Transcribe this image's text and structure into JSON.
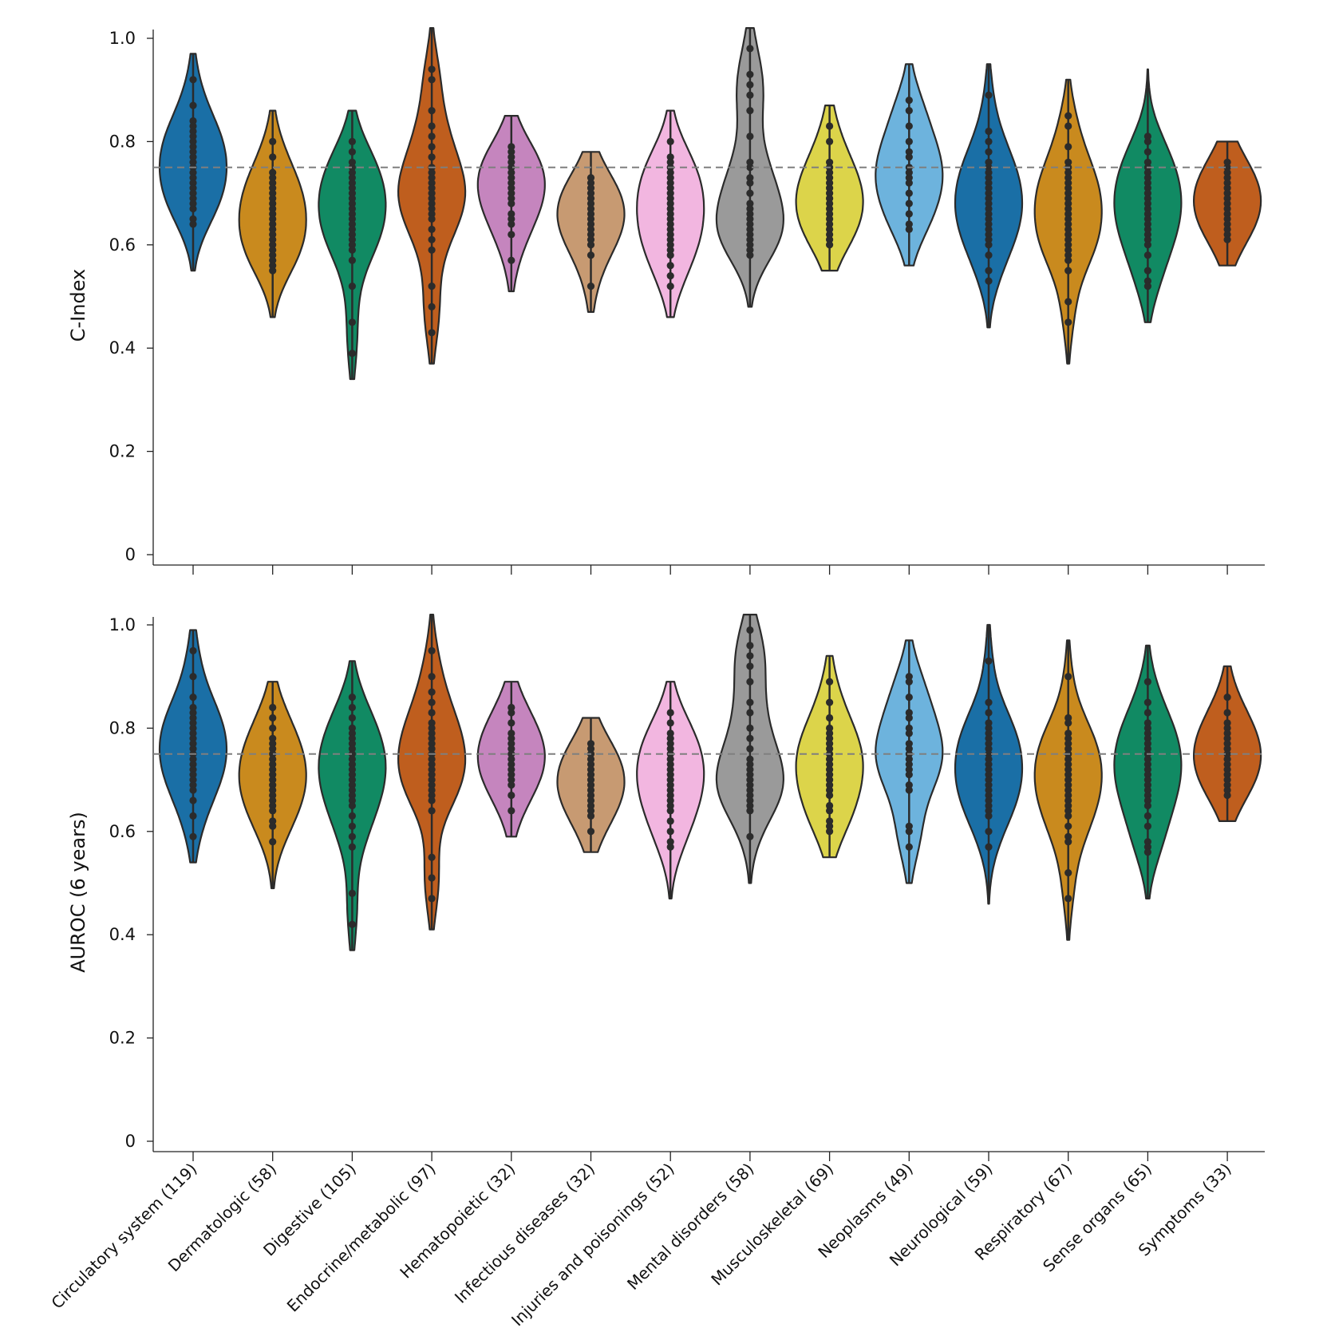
{
  "chart_data": [
    {
      "type": "violin",
      "ylabel": "C-Index",
      "ylim": [
        0,
        1.0
      ],
      "yticks": [
        0,
        0.2,
        0.4,
        0.6,
        0.8,
        1.0
      ],
      "ytick_labels": [
        "0",
        "0.2",
        "0.4",
        "0.6",
        "0.8",
        "1.0"
      ],
      "reference_line": 0.75,
      "categories": [
        "Circulatory system (119)",
        "Dermatologic (58)",
        "Digestive (105)",
        "Endocrine/metabolic (97)",
        "Hematopoietic (32)",
        "Infectious diseases (32)",
        "Injuries and poisonings (52)",
        "Mental disorders (58)",
        "Musculoskeletal (69)",
        "Neoplasms (49)",
        "Neurological (59)",
        "Respiratory (67)",
        "Sense organs (65)",
        "Symptoms (33)"
      ],
      "colors": [
        "#1a6fa6",
        "#c98a1e",
        "#118a63",
        "#bf5e1e",
        "#c585be",
        "#c79a72",
        "#f2b6e0",
        "#9a9a9a",
        "#dcd44a",
        "#6db3dd",
        "#1a6fa6",
        "#c98a1e",
        "#118a63",
        "#bf5e1e"
      ],
      "violins": [
        {
          "min": 0.55,
          "max": 0.97,
          "mode": 0.775
        },
        {
          "min": 0.46,
          "max": 0.86,
          "mode": 0.68
        },
        {
          "min": 0.34,
          "max": 0.86,
          "mode": 0.7
        },
        {
          "min": 0.37,
          "max": 1.02,
          "mode": 0.72
        },
        {
          "min": 0.51,
          "max": 0.85,
          "mode": 0.74
        },
        {
          "min": 0.47,
          "max": 0.78,
          "mode": 0.67
        },
        {
          "min": 0.46,
          "max": 0.86,
          "mode": 0.67
        },
        {
          "min": 0.48,
          "max": 1.02,
          "mode": 0.66
        },
        {
          "min": 0.55,
          "max": 0.87,
          "mode": 0.69
        },
        {
          "min": 0.56,
          "max": 0.95,
          "mode": 0.74
        },
        {
          "min": 0.44,
          "max": 0.95,
          "mode": 0.67
        },
        {
          "min": 0.37,
          "max": 0.92,
          "mode": 0.65
        },
        {
          "min": 0.45,
          "max": 0.94,
          "mode": 0.68
        },
        {
          "min": 0.56,
          "max": 0.8,
          "mode": 0.69
        }
      ],
      "points": [
        [
          0.92,
          0.87,
          0.84,
          0.83,
          0.82,
          0.81,
          0.8,
          0.79,
          0.78,
          0.77,
          0.76,
          0.75,
          0.74,
          0.73,
          0.72,
          0.71,
          0.7,
          0.69,
          0.68,
          0.67,
          0.65,
          0.64
        ],
        [
          0.8,
          0.77,
          0.74,
          0.73,
          0.72,
          0.71,
          0.7,
          0.69,
          0.68,
          0.67,
          0.66,
          0.65,
          0.64,
          0.63,
          0.62,
          0.61,
          0.6,
          0.59,
          0.58,
          0.57,
          0.56,
          0.55
        ],
        [
          0.8,
          0.78,
          0.76,
          0.75,
          0.74,
          0.73,
          0.72,
          0.71,
          0.7,
          0.69,
          0.68,
          0.67,
          0.66,
          0.65,
          0.64,
          0.63,
          0.62,
          0.61,
          0.6,
          0.59,
          0.57,
          0.52,
          0.45,
          0.39
        ],
        [
          0.94,
          0.92,
          0.86,
          0.83,
          0.81,
          0.79,
          0.77,
          0.75,
          0.74,
          0.73,
          0.72,
          0.71,
          0.7,
          0.69,
          0.68,
          0.67,
          0.66,
          0.65,
          0.63,
          0.61,
          0.59,
          0.52,
          0.48,
          0.43
        ],
        [
          0.79,
          0.78,
          0.77,
          0.76,
          0.75,
          0.74,
          0.73,
          0.72,
          0.71,
          0.7,
          0.69,
          0.68,
          0.66,
          0.65,
          0.64,
          0.62,
          0.57
        ],
        [
          0.73,
          0.72,
          0.71,
          0.7,
          0.69,
          0.68,
          0.67,
          0.66,
          0.65,
          0.64,
          0.63,
          0.62,
          0.61,
          0.6,
          0.58,
          0.52
        ],
        [
          0.8,
          0.77,
          0.76,
          0.75,
          0.74,
          0.73,
          0.72,
          0.71,
          0.7,
          0.69,
          0.68,
          0.67,
          0.66,
          0.65,
          0.64,
          0.63,
          0.62,
          0.61,
          0.6,
          0.59,
          0.58,
          0.56,
          0.54,
          0.52
        ],
        [
          0.98,
          0.93,
          0.91,
          0.89,
          0.86,
          0.81,
          0.76,
          0.75,
          0.73,
          0.72,
          0.7,
          0.68,
          0.67,
          0.66,
          0.65,
          0.64,
          0.63,
          0.62,
          0.61,
          0.6,
          0.59,
          0.58
        ],
        [
          0.83,
          0.8,
          0.76,
          0.75,
          0.74,
          0.73,
          0.72,
          0.71,
          0.7,
          0.69,
          0.68,
          0.67,
          0.66,
          0.65,
          0.64,
          0.63,
          0.62,
          0.61,
          0.6
        ],
        [
          0.88,
          0.86,
          0.83,
          0.8,
          0.78,
          0.77,
          0.75,
          0.74,
          0.73,
          0.72,
          0.7,
          0.68,
          0.66,
          0.64,
          0.63
        ],
        [
          0.89,
          0.82,
          0.8,
          0.78,
          0.76,
          0.75,
          0.74,
          0.73,
          0.72,
          0.71,
          0.7,
          0.69,
          0.68,
          0.67,
          0.66,
          0.65,
          0.64,
          0.63,
          0.62,
          0.61,
          0.6,
          0.58,
          0.55,
          0.53
        ],
        [
          0.85,
          0.83,
          0.79,
          0.76,
          0.75,
          0.74,
          0.73,
          0.72,
          0.71,
          0.7,
          0.69,
          0.68,
          0.67,
          0.66,
          0.65,
          0.64,
          0.63,
          0.62,
          0.61,
          0.6,
          0.59,
          0.58,
          0.57,
          0.55,
          0.49,
          0.45
        ],
        [
          0.81,
          0.8,
          0.78,
          0.76,
          0.75,
          0.74,
          0.73,
          0.72,
          0.71,
          0.7,
          0.69,
          0.68,
          0.67,
          0.66,
          0.65,
          0.64,
          0.63,
          0.62,
          0.61,
          0.6,
          0.58,
          0.55,
          0.53,
          0.52
        ],
        [
          0.76,
          0.75,
          0.74,
          0.73,
          0.72,
          0.71,
          0.7,
          0.69,
          0.68,
          0.67,
          0.66,
          0.65,
          0.64,
          0.63,
          0.62,
          0.61
        ]
      ]
    },
    {
      "type": "violin",
      "ylabel": "AUROC (6 years)",
      "ylim": [
        0,
        1.0
      ],
      "yticks": [
        0,
        0.2,
        0.4,
        0.6,
        0.8,
        1.0
      ],
      "ytick_labels": [
        "0",
        "0.2",
        "0.4",
        "0.6",
        "0.8",
        "1.0"
      ],
      "reference_line": 0.75,
      "categories": [
        "Circulatory system (119)",
        "Dermatologic (58)",
        "Digestive (105)",
        "Endocrine/metabolic (97)",
        "Hematopoietic (32)",
        "Infectious diseases (32)",
        "Injuries and poisonings (52)",
        "Mental disorders (58)",
        "Musculoskeletal (69)",
        "Neoplasms (49)",
        "Neurological (59)",
        "Respiratory (67)",
        "Sense organs (65)",
        "Symptoms (33)"
      ],
      "colors": [
        "#1a6fa6",
        "#c98a1e",
        "#118a63",
        "#bf5e1e",
        "#c585be",
        "#c79a72",
        "#f2b6e0",
        "#9a9a9a",
        "#dcd44a",
        "#6db3dd",
        "#1a6fa6",
        "#c98a1e",
        "#118a63",
        "#bf5e1e"
      ],
      "violins": [
        {
          "min": 0.54,
          "max": 0.99,
          "mode": 0.8
        },
        {
          "min": 0.49,
          "max": 0.89,
          "mode": 0.74
        },
        {
          "min": 0.37,
          "max": 0.93,
          "mode": 0.76
        },
        {
          "min": 0.41,
          "max": 1.02,
          "mode": 0.75
        },
        {
          "min": 0.59,
          "max": 0.89,
          "mode": 0.76
        },
        {
          "min": 0.56,
          "max": 0.82,
          "mode": 0.7
        },
        {
          "min": 0.47,
          "max": 0.89,
          "mode": 0.71
        },
        {
          "min": 0.5,
          "max": 1.02,
          "mode": 0.7
        },
        {
          "min": 0.55,
          "max": 0.94,
          "mode": 0.72
        },
        {
          "min": 0.5,
          "max": 0.97,
          "mode": 0.76
        },
        {
          "min": 0.46,
          "max": 1.0,
          "mode": 0.74
        },
        {
          "min": 0.39,
          "max": 0.97,
          "mode": 0.73
        },
        {
          "min": 0.47,
          "max": 0.96,
          "mode": 0.74
        },
        {
          "min": 0.62,
          "max": 0.92,
          "mode": 0.76
        }
      ],
      "points": [
        [
          0.95,
          0.9,
          0.86,
          0.84,
          0.83,
          0.82,
          0.81,
          0.8,
          0.79,
          0.78,
          0.77,
          0.76,
          0.75,
          0.74,
          0.73,
          0.72,
          0.71,
          0.7,
          0.69,
          0.68,
          0.66,
          0.63,
          0.59
        ],
        [
          0.84,
          0.82,
          0.8,
          0.78,
          0.77,
          0.76,
          0.75,
          0.74,
          0.73,
          0.72,
          0.71,
          0.7,
          0.69,
          0.68,
          0.67,
          0.66,
          0.65,
          0.64,
          0.62,
          0.61,
          0.58
        ],
        [
          0.86,
          0.84,
          0.82,
          0.8,
          0.79,
          0.78,
          0.77,
          0.76,
          0.75,
          0.74,
          0.73,
          0.72,
          0.71,
          0.7,
          0.69,
          0.68,
          0.67,
          0.66,
          0.65,
          0.63,
          0.61,
          0.59,
          0.57,
          0.48,
          0.42
        ],
        [
          0.95,
          0.9,
          0.87,
          0.85,
          0.83,
          0.81,
          0.8,
          0.79,
          0.78,
          0.77,
          0.76,
          0.75,
          0.74,
          0.73,
          0.72,
          0.71,
          0.7,
          0.69,
          0.68,
          0.67,
          0.66,
          0.64,
          0.55,
          0.51,
          0.47
        ],
        [
          0.84,
          0.83,
          0.81,
          0.79,
          0.78,
          0.77,
          0.76,
          0.75,
          0.74,
          0.73,
          0.72,
          0.71,
          0.7,
          0.69,
          0.67,
          0.64
        ],
        [
          0.77,
          0.76,
          0.75,
          0.74,
          0.73,
          0.72,
          0.71,
          0.7,
          0.69,
          0.68,
          0.67,
          0.66,
          0.65,
          0.64,
          0.63,
          0.6
        ],
        [
          0.83,
          0.81,
          0.79,
          0.78,
          0.77,
          0.76,
          0.75,
          0.74,
          0.73,
          0.72,
          0.71,
          0.7,
          0.69,
          0.68,
          0.67,
          0.66,
          0.65,
          0.64,
          0.62,
          0.6,
          0.58,
          0.57
        ],
        [
          0.99,
          0.96,
          0.94,
          0.92,
          0.89,
          0.85,
          0.83,
          0.8,
          0.78,
          0.76,
          0.74,
          0.73,
          0.72,
          0.71,
          0.7,
          0.69,
          0.68,
          0.67,
          0.66,
          0.65,
          0.64,
          0.59
        ],
        [
          0.89,
          0.85,
          0.82,
          0.8,
          0.79,
          0.78,
          0.77,
          0.76,
          0.75,
          0.74,
          0.73,
          0.72,
          0.71,
          0.7,
          0.69,
          0.68,
          0.67,
          0.65,
          0.64,
          0.62,
          0.61,
          0.6
        ],
        [
          0.9,
          0.89,
          0.86,
          0.83,
          0.82,
          0.8,
          0.79,
          0.77,
          0.76,
          0.75,
          0.74,
          0.73,
          0.72,
          0.71,
          0.69,
          0.68,
          0.61,
          0.6,
          0.57
        ],
        [
          0.93,
          0.85,
          0.83,
          0.81,
          0.8,
          0.79,
          0.78,
          0.77,
          0.76,
          0.75,
          0.74,
          0.73,
          0.72,
          0.71,
          0.7,
          0.69,
          0.68,
          0.67,
          0.66,
          0.65,
          0.64,
          0.63,
          0.6,
          0.57
        ],
        [
          0.9,
          0.82,
          0.81,
          0.79,
          0.78,
          0.77,
          0.76,
          0.75,
          0.74,
          0.73,
          0.72,
          0.71,
          0.7,
          0.69,
          0.68,
          0.67,
          0.66,
          0.65,
          0.64,
          0.63,
          0.61,
          0.59,
          0.58,
          0.52,
          0.47
        ],
        [
          0.89,
          0.85,
          0.83,
          0.81,
          0.8,
          0.79,
          0.78,
          0.77,
          0.76,
          0.75,
          0.74,
          0.73,
          0.72,
          0.71,
          0.7,
          0.69,
          0.68,
          0.67,
          0.66,
          0.65,
          0.63,
          0.61,
          0.58,
          0.57,
          0.56
        ],
        [
          0.86,
          0.83,
          0.81,
          0.8,
          0.79,
          0.78,
          0.77,
          0.76,
          0.75,
          0.74,
          0.73,
          0.72,
          0.71,
          0.7,
          0.69,
          0.68,
          0.67
        ]
      ]
    }
  ]
}
